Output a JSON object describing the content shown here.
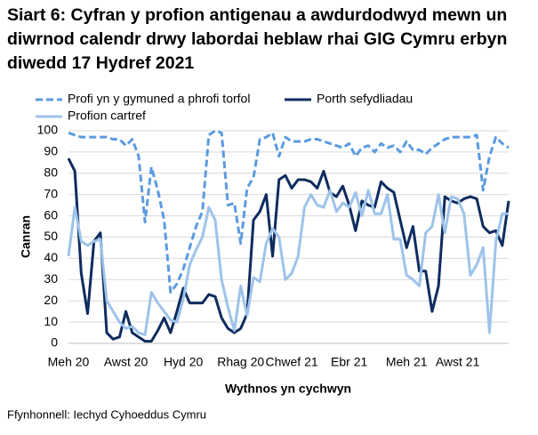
{
  "chart_data": {
    "type": "line",
    "title": "Siart 6: Cyfran y profion antigenau a awdurdodwyd mewn un diwrnod calendr drwy labordai heblaw rhai GIG Cymru erbyn diwedd 17 Hydref 2021",
    "x_label": "Wythnos yn cychwyn",
    "y_label": "Canran",
    "source": "Ffynhonnell: Iechyd Cyhoeddus Cymru",
    "categories": [
      "Meh 20",
      null,
      null,
      null,
      null,
      null,
      null,
      null,
      null,
      "Awst 20",
      null,
      null,
      null,
      null,
      null,
      null,
      null,
      null,
      "Hyd 20",
      null,
      null,
      null,
      null,
      null,
      null,
      null,
      null,
      "Rhag 20",
      null,
      null,
      null,
      null,
      null,
      null,
      null,
      "Chwef 21",
      null,
      null,
      null,
      null,
      null,
      null,
      null,
      null,
      "Ebr 21",
      null,
      null,
      null,
      null,
      null,
      null,
      null,
      null,
      "Meh 21",
      null,
      null,
      null,
      null,
      null,
      null,
      null,
      "Awst 21",
      null,
      null,
      null,
      null,
      null,
      null,
      null,
      null
    ],
    "series": [
      {
        "name": "Profi yn y gymuned a phrofi torfol",
        "color": "#5b9be0",
        "dashed": true,
        "values": [
          99,
          98,
          97,
          97,
          97,
          97,
          97,
          96,
          96,
          93,
          96,
          88,
          57,
          83,
          72,
          58,
          24,
          28,
          35,
          45,
          55,
          62,
          98,
          100,
          99,
          65,
          66,
          47,
          73,
          78,
          96,
          97,
          99,
          88,
          97,
          95,
          95,
          95,
          96,
          96,
          95,
          94,
          93,
          92,
          94,
          88,
          92,
          93,
          90,
          94,
          92,
          93,
          90,
          95,
          91,
          91,
          89,
          92,
          94,
          96,
          97,
          97,
          97,
          97,
          98,
          72,
          88,
          97,
          94,
          92
        ]
      },
      {
        "name": "Porth sefydliadau",
        "color": "#0e2c5e",
        "dashed": false,
        "values": [
          87,
          81,
          33,
          14,
          48,
          52,
          5,
          2,
          3,
          15,
          5,
          3,
          1,
          1,
          6,
          12,
          5,
          15,
          26,
          19,
          19,
          19,
          23,
          22,
          12,
          7,
          5,
          7,
          14,
          58,
          62,
          70,
          41,
          77,
          79,
          73,
          77,
          77,
          76,
          73,
          81,
          71,
          69,
          74,
          65,
          53,
          67,
          65,
          64,
          76,
          73,
          71,
          58,
          45,
          55,
          34,
          34,
          15,
          27,
          69,
          67,
          66,
          68,
          69,
          68,
          55,
          52,
          53,
          46,
          67
        ]
      },
      {
        "name": "Profion cartref",
        "color": "#9dc3ea",
        "dashed": false,
        "values": [
          41,
          64,
          48,
          46,
          48,
          49,
          20,
          15,
          10,
          7,
          8,
          5,
          4,
          24,
          19,
          15,
          11,
          10,
          21,
          37,
          44,
          50,
          64,
          58,
          30,
          17,
          6,
          27,
          13,
          31,
          29,
          47,
          54,
          50,
          30,
          33,
          41,
          64,
          70,
          65,
          64,
          72,
          62,
          66,
          64,
          71,
          60,
          72,
          61,
          61,
          70,
          49,
          49,
          32,
          30,
          27,
          52,
          55,
          70,
          52,
          69,
          68,
          61,
          32,
          37,
          45,
          5,
          48,
          61,
          61
        ]
      }
    ],
    "ylim": [
      0,
      100
    ],
    "yticks": [
      0,
      10,
      20,
      30,
      40,
      50,
      60,
      70,
      80,
      90,
      100
    ],
    "grid": true
  }
}
